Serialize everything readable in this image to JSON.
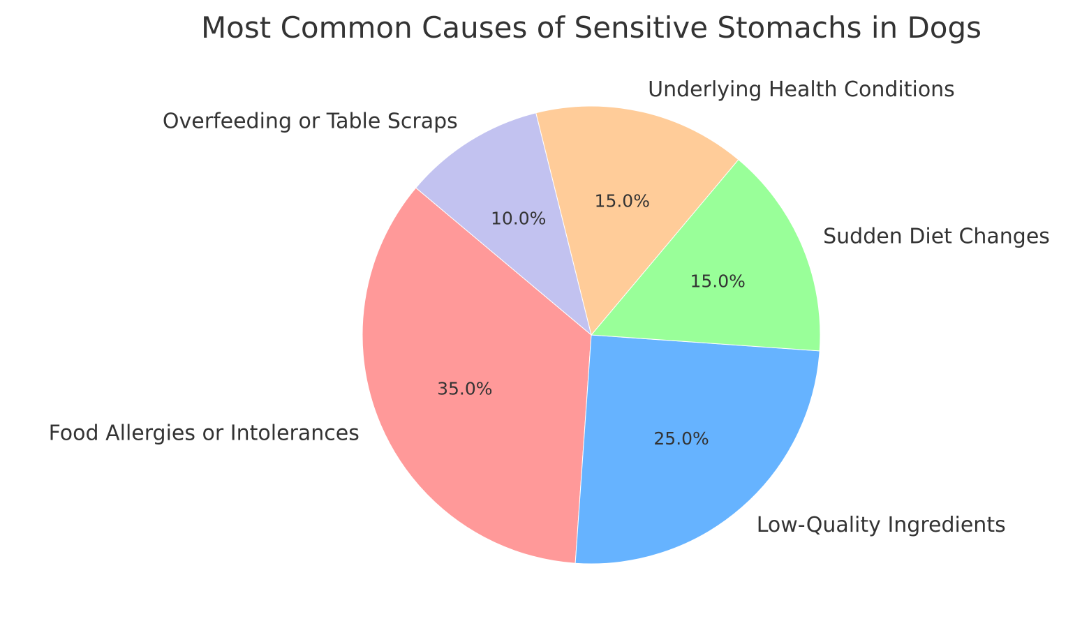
{
  "chart_data": {
    "type": "pie",
    "title": "Most Common Causes of Sensitive Stomachs in Dogs",
    "start_angle_deg": 140,
    "direction": "counterclockwise",
    "slices": [
      {
        "label": "Food Allergies or Intolerances",
        "value": 35,
        "pct_label": "35.0%",
        "color": "#ff9999"
      },
      {
        "label": "Low-Quality Ingredients",
        "value": 25,
        "pct_label": "25.0%",
        "color": "#66b3ff"
      },
      {
        "label": "Sudden Diet Changes",
        "value": 15,
        "pct_label": "15.0%",
        "color": "#99ff99"
      },
      {
        "label": "Underlying Health Conditions",
        "value": 15,
        "pct_label": "15.0%",
        "color": "#ffcc99"
      },
      {
        "label": "Overfeeding or Table Scraps",
        "value": 10,
        "pct_label": "10.0%",
        "color": "#c2c2f0"
      }
    ]
  }
}
